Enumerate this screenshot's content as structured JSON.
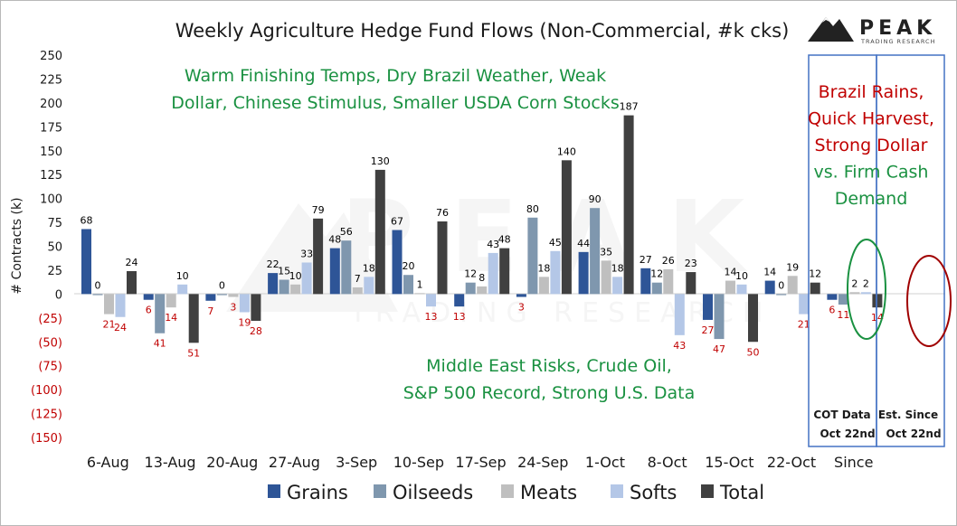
{
  "chart_data": {
    "type": "bar",
    "title": "Weekly Agriculture Hedge Fund Flows (Non-Commercial, #k cks)",
    "ylabel": "# Contracts (k)",
    "xlabel": "",
    "ylim": [
      -150,
      250
    ],
    "y_ticks": [
      "250",
      "225",
      "200",
      "175",
      "150",
      "125",
      "100",
      "75",
      "50",
      "25",
      "0",
      "(25)",
      "(50)",
      "(75)",
      "(100)",
      "(125)",
      "(150)"
    ],
    "grid": false,
    "legend_position": "bottom",
    "categories": [
      "6-Aug",
      "13-Aug",
      "20-Aug",
      "27-Aug",
      "3-Sep",
      "10-Sep",
      "17-Sep",
      "24-Sep",
      "1-Oct",
      "8-Oct",
      "15-Oct",
      "22-Oct",
      "Since"
    ],
    "series": [
      {
        "name": "Grains",
        "color": "#2e5597",
        "values": [
          68,
          -6,
          -7,
          22,
          48,
          67,
          -13,
          -3,
          44,
          27,
          -27,
          14,
          -6
        ]
      },
      {
        "name": "Oilseeds",
        "color": "#7f97ae",
        "values": [
          0,
          -41,
          0,
          15,
          56,
          20,
          12,
          80,
          90,
          12,
          -47,
          0,
          -11
        ]
      },
      {
        "name": "Meats",
        "color": "#bfbfbf",
        "values": [
          -21,
          -14,
          -3,
          10,
          7,
          1,
          8,
          18,
          35,
          26,
          14,
          19,
          2
        ]
      },
      {
        "name": "Softs",
        "color": "#b4c7e7",
        "values": [
          -24,
          10,
          -19,
          33,
          18,
          -13,
          43,
          45,
          18,
          -43,
          10,
          -21,
          2
        ]
      },
      {
        "name": "Total",
        "color": "#404040",
        "values": [
          24,
          -51,
          -28,
          79,
          130,
          76,
          48,
          140,
          187,
          23,
          -50,
          12,
          -14
        ]
      }
    ],
    "bar_labels": [
      [
        "68",
        "0",
        "21",
        "24",
        "24"
      ],
      [
        "6",
        "41",
        "14",
        "10",
        "51"
      ],
      [
        "7",
        "0",
        "3",
        "19",
        "28"
      ],
      [
        "22",
        "15",
        "10",
        "33",
        "79"
      ],
      [
        "48",
        "56",
        "7",
        "18",
        "130"
      ],
      [
        "67",
        "20",
        "1",
        "13",
        "76"
      ],
      [
        "13",
        "12",
        "8",
        "43",
        "48"
      ],
      [
        "3",
        "80",
        "18",
        "45",
        "140"
      ],
      [
        "44",
        "90",
        "35",
        "18",
        "187"
      ],
      [
        "27",
        "12",
        "26",
        "43",
        "23"
      ],
      [
        "27",
        "47",
        "14",
        "10",
        "50"
      ],
      [
        "14",
        "0",
        "19",
        "21",
        "12"
      ],
      [
        "6",
        "11",
        "2",
        "2",
        "14"
      ]
    ],
    "annotations": {
      "bullish_text": [
        "Warm Finishing Temps, Dry Brazil Weather, Weak",
        "Dollar, Chinese Stimulus, Smaller USDA Corn Stocks"
      ],
      "bearish_text": [
        "Middle East Risks, Crude Oil,",
        "S&P 500 Record, Strong U.S. Data"
      ],
      "right_text": [
        {
          "text": "Brazil Rains,",
          "color": "#c00000"
        },
        {
          "text": "Quick Harvest,",
          "color": "#c00000"
        },
        {
          "text": "Strong Dollar",
          "color": "#c00000"
        },
        {
          "text": "vs. Firm Cash",
          "color": "#1a9141"
        },
        {
          "text": "Demand",
          "color": "#1a9141"
        }
      ],
      "cot_label": [
        "COT Data",
        "Oct 22nd"
      ],
      "since_label": [
        "Est. Since",
        "Oct 22nd"
      ],
      "positive_label_color": "#000000",
      "negative_label_color": "#c00000",
      "bullish_color": "#1a9141",
      "box_color": "#4472c4"
    }
  },
  "branding": {
    "name": "PEAK",
    "tagline": "TRADING RESEARCH",
    "watermark": "PEAK",
    "watermark_tagline": "TRADING RESEARCH"
  }
}
